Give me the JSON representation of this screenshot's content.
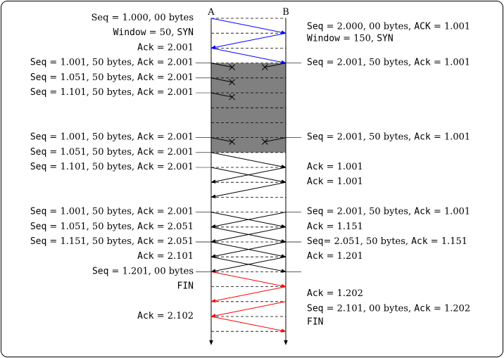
{
  "hosts": {
    "left": "A",
    "right": "B"
  },
  "colors": {
    "handshake": "#0000ff",
    "teardown": "#ff0000",
    "normal": "#000000",
    "lost_zone": "#808080"
  },
  "left_labels": [
    {
      "row": 0,
      "parts": [
        [
          "t",
          "Seq = 1.000, 00 bytes"
        ]
      ]
    },
    {
      "row": 1,
      "parts": [
        [
          "m",
          "Window"
        ],
        [
          "t",
          " = 50, "
        ],
        [
          "m",
          "SYN"
        ]
      ]
    },
    {
      "row": 2,
      "parts": [
        [
          "m",
          "Ack"
        ],
        [
          "t",
          " = 2.001"
        ]
      ]
    },
    {
      "row": 3,
      "parts": [
        [
          "m",
          "Seq"
        ],
        [
          "t",
          " = 1.001, 50 bytes, "
        ],
        [
          "m",
          "Ack"
        ],
        [
          "t",
          " = 2.001"
        ]
      ]
    },
    {
      "row": 4,
      "parts": [
        [
          "m",
          "Seq"
        ],
        [
          "t",
          " = 1.051, 50 bytes, "
        ],
        [
          "m",
          "Ack"
        ],
        [
          "t",
          " = 2.001"
        ]
      ]
    },
    {
      "row": 5,
      "parts": [
        [
          "m",
          "Seq"
        ],
        [
          "t",
          " = 1.101, 50 bytes, "
        ],
        [
          "m",
          "Ack"
        ],
        [
          "t",
          " = 2.001"
        ]
      ]
    },
    {
      "row": 8,
      "parts": [
        [
          "m",
          "Seq"
        ],
        [
          "t",
          " = 1.001, 50 bytes, "
        ],
        [
          "m",
          "Ack"
        ],
        [
          "t",
          " = 2.001"
        ]
      ]
    },
    {
      "row": 9,
      "parts": [
        [
          "m",
          "Seq"
        ],
        [
          "t",
          " = 1.051, 50 bytes, "
        ],
        [
          "m",
          "Ack"
        ],
        [
          "t",
          " = 2.001"
        ]
      ]
    },
    {
      "row": 10,
      "parts": [
        [
          "m",
          "Seq"
        ],
        [
          "t",
          " = 1.101, 50 bytes, "
        ],
        [
          "m",
          "Ack"
        ],
        [
          "t",
          " = 2.001"
        ]
      ]
    },
    {
      "row": 13,
      "parts": [
        [
          "m",
          "Seq"
        ],
        [
          "t",
          " = 1.001, 50 bytes, "
        ],
        [
          "m",
          "Ack"
        ],
        [
          "t",
          " = 2.001"
        ]
      ]
    },
    {
      "row": 14,
      "parts": [
        [
          "m",
          "Seq"
        ],
        [
          "t",
          " = 1.051, 50 bytes, "
        ],
        [
          "m",
          "Ack"
        ],
        [
          "t",
          " = 2.051"
        ]
      ]
    },
    {
      "row": 15,
      "parts": [
        [
          "m",
          "Seq"
        ],
        [
          "t",
          " = 1.151, 50 bytes, "
        ],
        [
          "m",
          "Ack"
        ],
        [
          "t",
          " = 2.051"
        ]
      ]
    },
    {
      "row": 16,
      "parts": [
        [
          "m",
          "Ack"
        ],
        [
          "t",
          " = 2.101"
        ]
      ]
    },
    {
      "row": 17,
      "parts": [
        [
          "m",
          "Seq"
        ],
        [
          "t",
          " = 1.201, 00 bytes"
        ]
      ]
    },
    {
      "row": 18,
      "parts": [
        [
          "m",
          "FIN"
        ]
      ]
    },
    {
      "row": 20,
      "parts": [
        [
          "m",
          "Ack"
        ],
        [
          "t",
          " = 2.102"
        ]
      ]
    }
  ],
  "right_labels": [
    {
      "row": 0.6,
      "parts": [
        [
          "m",
          "Seq"
        ],
        [
          "t",
          " = 2.000, 00 bytes, "
        ],
        [
          "m",
          "ACK"
        ],
        [
          "t",
          " = 1.001"
        ]
      ]
    },
    {
      "row": 1.4,
      "parts": [
        [
          "m",
          "Window"
        ],
        [
          "t",
          " = 150, "
        ],
        [
          "m",
          "SYN"
        ]
      ]
    },
    {
      "row": 3,
      "parts": [
        [
          "m",
          "Seq"
        ],
        [
          "t",
          " = 2.001, 50 bytes, "
        ],
        [
          "m",
          "Ack"
        ],
        [
          "t",
          " = 1.001"
        ]
      ]
    },
    {
      "row": 8,
      "parts": [
        [
          "m",
          "Seq"
        ],
        [
          "t",
          " = 2.001, 50 bytes, "
        ],
        [
          "m",
          "Ack"
        ],
        [
          "t",
          " = 1.001"
        ]
      ]
    },
    {
      "row": 10,
      "parts": [
        [
          "m",
          "Ack"
        ],
        [
          "t",
          " = 1.001"
        ]
      ]
    },
    {
      "row": 11,
      "parts": [
        [
          "m",
          "Ack"
        ],
        [
          "t",
          " = 1.001"
        ]
      ]
    },
    {
      "row": 13,
      "parts": [
        [
          "m",
          "Seq"
        ],
        [
          "t",
          " = 2.001, 50 bytes, "
        ],
        [
          "m",
          "Ack"
        ],
        [
          "t",
          " = 1.001"
        ]
      ]
    },
    {
      "row": 14,
      "parts": [
        [
          "m",
          "Ack"
        ],
        [
          "t",
          " = 1.151"
        ]
      ]
    },
    {
      "row": 15,
      "parts": [
        [
          "m",
          "Seq"
        ],
        [
          "t",
          "= 2.051, 50 bytes, "
        ],
        [
          "m",
          "Ack"
        ],
        [
          "t",
          " = 1.151"
        ]
      ]
    },
    {
      "row": 16,
      "parts": [
        [
          "m",
          "Ack"
        ],
        [
          "t",
          " = 1.201"
        ]
      ]
    },
    {
      "row": 18.5,
      "parts": [
        [
          "m",
          "Ack"
        ],
        [
          "t",
          " = 1.202"
        ]
      ]
    },
    {
      "row": 19.5,
      "parts": [
        [
          "m",
          "Seq"
        ],
        [
          "t",
          " = 2.101, 00 bytes, "
        ],
        [
          "m",
          "Ack"
        ],
        [
          "t",
          " = 1.202"
        ]
      ]
    },
    {
      "row": 20.4,
      "parts": [
        [
          "m",
          "FIN"
        ]
      ]
    }
  ],
  "messages": [
    {
      "from": "A",
      "t0": 0,
      "t1": 1,
      "color": "handshake",
      "lost": false
    },
    {
      "from": "B",
      "t0": 1,
      "t1": 2,
      "color": "handshake",
      "lost": false
    },
    {
      "from": "A",
      "t0": 2,
      "t1": 3,
      "color": "handshake",
      "lost": false
    },
    {
      "from": "A",
      "t0": 3,
      "t1": 4,
      "color": "normal",
      "lost": true
    },
    {
      "from": "A",
      "t0": 4,
      "t1": 5,
      "color": "normal",
      "lost": true
    },
    {
      "from": "A",
      "t0": 5,
      "t1": 6,
      "color": "normal",
      "lost": true
    },
    {
      "from": "B",
      "t0": 3,
      "t1": 4,
      "color": "normal",
      "lost": true
    },
    {
      "from": "A",
      "t0": 8,
      "t1": 9,
      "color": "normal",
      "lost": true
    },
    {
      "from": "B",
      "t0": 8,
      "t1": 9,
      "color": "normal",
      "lost": true
    },
    {
      "from": "A",
      "t0": 9,
      "t1": 10,
      "color": "normal",
      "lost": false
    },
    {
      "from": "A",
      "t0": 10,
      "t1": 11,
      "color": "normal",
      "lost": false
    },
    {
      "from": "B",
      "t0": 10,
      "t1": 11,
      "color": "normal",
      "lost": false
    },
    {
      "from": "B",
      "t0": 11,
      "t1": 12,
      "color": "normal",
      "lost": false
    },
    {
      "from": "A",
      "t0": 13,
      "t1": 14,
      "color": "normal",
      "lost": false
    },
    {
      "from": "B",
      "t0": 13,
      "t1": 14,
      "color": "normal",
      "lost": false
    },
    {
      "from": "A",
      "t0": 14,
      "t1": 15,
      "color": "normal",
      "lost": false
    },
    {
      "from": "B",
      "t0": 14,
      "t1": 15,
      "color": "normal",
      "lost": false
    },
    {
      "from": "A",
      "t0": 15,
      "t1": 16,
      "color": "normal",
      "lost": false
    },
    {
      "from": "B",
      "t0": 15,
      "t1": 16,
      "color": "normal",
      "lost": false
    },
    {
      "from": "A",
      "t0": 16,
      "t1": 17,
      "color": "normal",
      "lost": false
    },
    {
      "from": "B",
      "t0": 16,
      "t1": 17,
      "color": "normal",
      "lost": false
    },
    {
      "from": "A",
      "t0": 17,
      "t1": 18,
      "color": "teardown",
      "lost": false
    },
    {
      "from": "B",
      "t0": 18,
      "t1": 19,
      "color": "teardown",
      "lost": false
    },
    {
      "from": "B",
      "t0": 19,
      "t1": 20,
      "color": "teardown",
      "lost": false
    },
    {
      "from": "A",
      "t0": 20,
      "t1": 21,
      "color": "teardown",
      "lost": false
    }
  ]
}
